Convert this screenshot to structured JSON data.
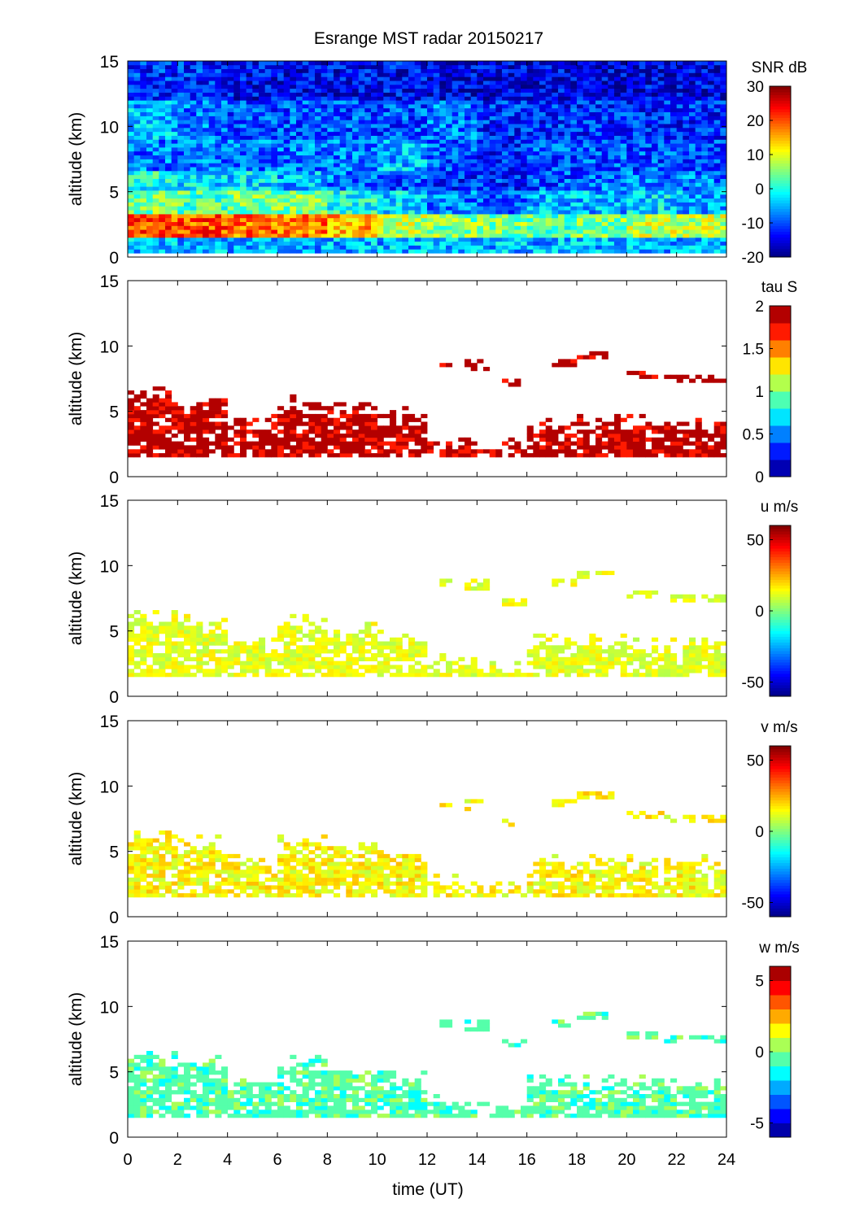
{
  "chart_data": {
    "type": "heatmap",
    "title": "Esrange MST radar 20150217",
    "xlabel": "time (UT)",
    "ylabel": "altitude (km)",
    "xlim": [
      0,
      24
    ],
    "ylim": [
      0,
      15
    ],
    "x_ticks": [
      "0",
      "2",
      "4",
      "6",
      "8",
      "10",
      "12",
      "14",
      "16",
      "18",
      "20",
      "22",
      "24"
    ],
    "y_ticks": [
      "0",
      "5",
      "10",
      "15"
    ],
    "time_bins_h": [
      0,
      2,
      4,
      6,
      8,
      10,
      12,
      14,
      16,
      18,
      20,
      22
    ],
    "panels": [
      {
        "name": "snr",
        "colorbar_label": "SNR dB",
        "clim": [
          -20,
          30
        ],
        "cbar_ticks": [
          "30",
          "20",
          "10",
          "0",
          "-10",
          "-20"
        ],
        "levels": 0,
        "altitude_bands_km": [
          [
            0,
            1.5
          ],
          [
            1.5,
            3
          ],
          [
            3,
            5
          ],
          [
            5,
            6.5
          ],
          [
            6.5,
            9
          ],
          [
            9,
            12
          ],
          [
            12,
            15
          ]
        ],
        "values": [
          [
            -5,
            -5,
            -5,
            -5,
            -5,
            -5,
            -5,
            -5,
            -5,
            -5,
            -5,
            -5
          ],
          [
            20,
            20,
            18,
            18,
            15,
            8,
            5,
            5,
            3,
            5,
            8,
            8
          ],
          [
            5,
            3,
            5,
            5,
            0,
            -3,
            -8,
            -10,
            -5,
            -5,
            -3,
            -5
          ],
          [
            0,
            -3,
            -3,
            -5,
            -8,
            -10,
            -12,
            -12,
            -10,
            -8,
            -8,
            -8
          ],
          [
            -8,
            -8,
            -8,
            -8,
            -8,
            -5,
            -10,
            -12,
            -10,
            -10,
            -10,
            -10
          ],
          [
            -5,
            -8,
            -10,
            -10,
            -10,
            -10,
            -8,
            -12,
            -12,
            -12,
            -12,
            -12
          ],
          [
            -12,
            -12,
            -14,
            -14,
            -14,
            -14,
            -15,
            -15,
            -15,
            -15,
            -15,
            -15
          ]
        ]
      },
      {
        "name": "tau",
        "colorbar_label": "tau S",
        "clim": [
          0,
          2
        ],
        "cbar_ticks": [
          "2",
          "1.5",
          "1",
          "0.5",
          "0"
        ],
        "levels": 10,
        "typical_value": 1.95,
        "spread": 0.3
      },
      {
        "name": "u",
        "colorbar_label": "u m/s",
        "clim": [
          -60,
          60
        ],
        "cbar_ticks": [
          "50",
          "0",
          "-50"
        ],
        "levels": 0,
        "typical_value": 12,
        "spread": 6
      },
      {
        "name": "v",
        "colorbar_label": "v m/s",
        "clim": [
          -60,
          60
        ],
        "cbar_ticks": [
          "50",
          "0",
          "-50"
        ],
        "levels": 0,
        "typical_value": 15,
        "spread": 8
      },
      {
        "name": "w",
        "colorbar_label": "w m/s",
        "clim": [
          -6,
          6
        ],
        "cbar_ticks": [
          "5",
          "0",
          "-5"
        ],
        "levels": 12,
        "typical_value": -0.5,
        "spread": 0.8
      }
    ],
    "valid_region": {
      "bottom_km": 1.5,
      "top_km": [
        6,
        5.5,
        4,
        5.5,
        5,
        4.5,
        2.5,
        2,
        4,
        4,
        4,
        4
      ],
      "upper_layers": [
        [
          12.3,
          12.8,
          8.6
        ],
        [
          13.5,
          14.3,
          8.4
        ],
        [
          15,
          16,
          7.1
        ],
        [
          17,
          18,
          8.6
        ],
        [
          18,
          19.5,
          9.2
        ],
        [
          20,
          21.5,
          7.6
        ],
        [
          21.5,
          24,
          7.3
        ]
      ]
    }
  }
}
